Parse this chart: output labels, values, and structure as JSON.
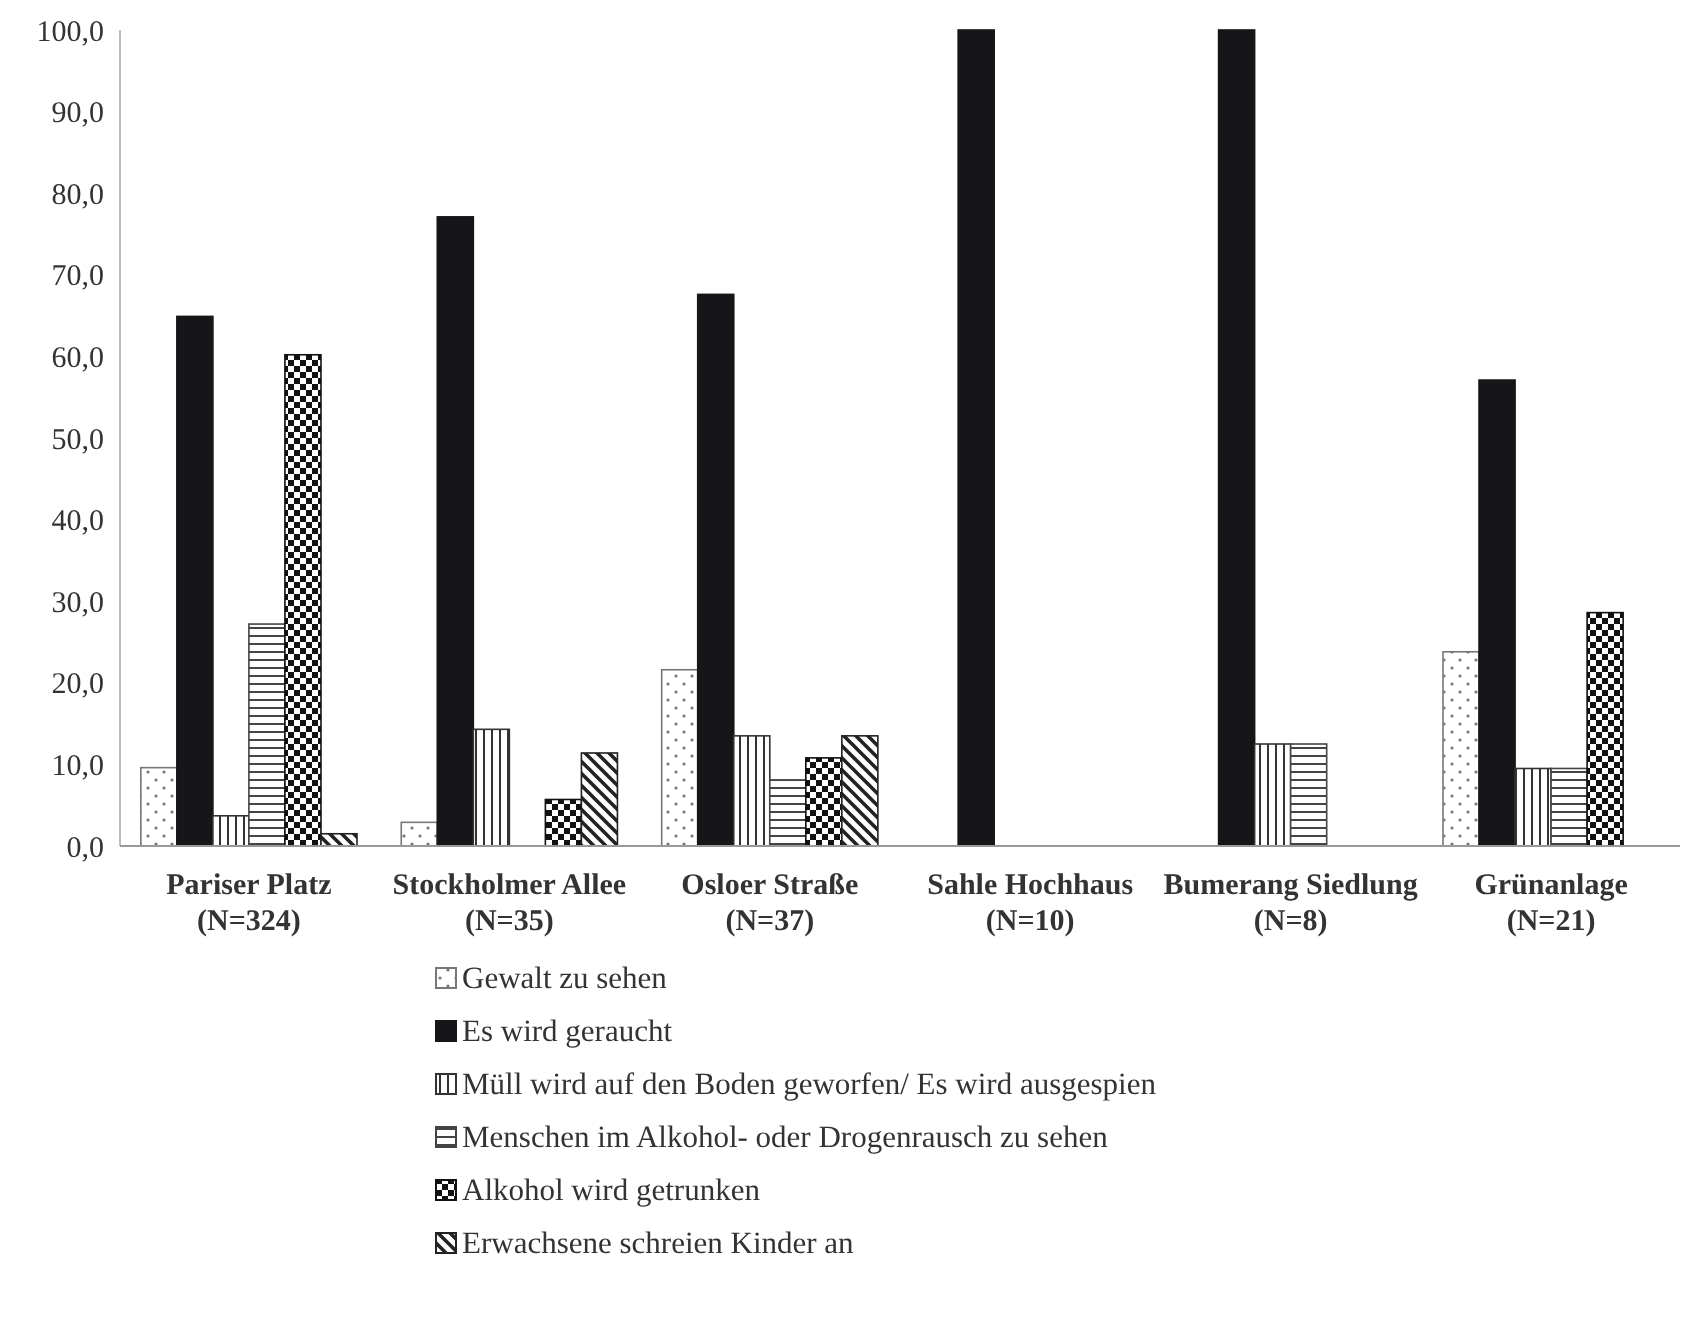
{
  "chart_data": {
    "type": "bar",
    "categories": [
      "Pariser Platz (N=324)",
      "Stockholmer Allee (N=35)",
      "Osloer Straße (N=37)",
      "Sahle Hochhaus (N=10)",
      "Bumerang Siedlung (N=8)",
      "Grünanlage (N=21)"
    ],
    "series": [
      {
        "name": "Gewalt zu sehen",
        "color": "#777777",
        "values": [
          9.6,
          2.9,
          21.6,
          0,
          0,
          23.8
        ]
      },
      {
        "name": "Es wird geraucht",
        "color": "#161618",
        "values": [
          64.9,
          77.1,
          67.6,
          100,
          100,
          57.1
        ]
      },
      {
        "name": "Müll wird auf den Boden geworfen/ Es wird ausgespien",
        "color": "#333333",
        "values": [
          3.7,
          14.3,
          13.5,
          0,
          12.5,
          9.5
        ]
      },
      {
        "name": "Menschen im Alkohol- oder Drogenrausch zu sehen",
        "color": "#444444",
        "values": [
          27.2,
          0,
          8.1,
          0,
          12.5,
          9.5
        ]
      },
      {
        "name": "Alkohol wird getrunken",
        "color": "#111111",
        "values": [
          60.2,
          5.7,
          10.8,
          0,
          0,
          28.6
        ]
      },
      {
        "name": "Erwachsene schreien Kinder an",
        "color": "#222222",
        "values": [
          1.5,
          11.4,
          13.5,
          0,
          0,
          0
        ]
      }
    ],
    "ylim": [
      0,
      100
    ],
    "yticks": [
      {
        "value": 0,
        "label": "0,0"
      },
      {
        "value": 10,
        "label": "10,0"
      },
      {
        "value": 20,
        "label": "20,0"
      },
      {
        "value": 30,
        "label": "30,0"
      },
      {
        "value": 40,
        "label": "40,0"
      },
      {
        "value": 50,
        "label": "50,0"
      },
      {
        "value": 60,
        "label": "60,0"
      },
      {
        "value": 70,
        "label": "70,0"
      },
      {
        "value": 80,
        "label": "80,0"
      },
      {
        "value": 90,
        "label": "90,0"
      },
      {
        "value": 100,
        "label": "100,0"
      }
    ],
    "grid": false,
    "legend": "bottom"
  }
}
